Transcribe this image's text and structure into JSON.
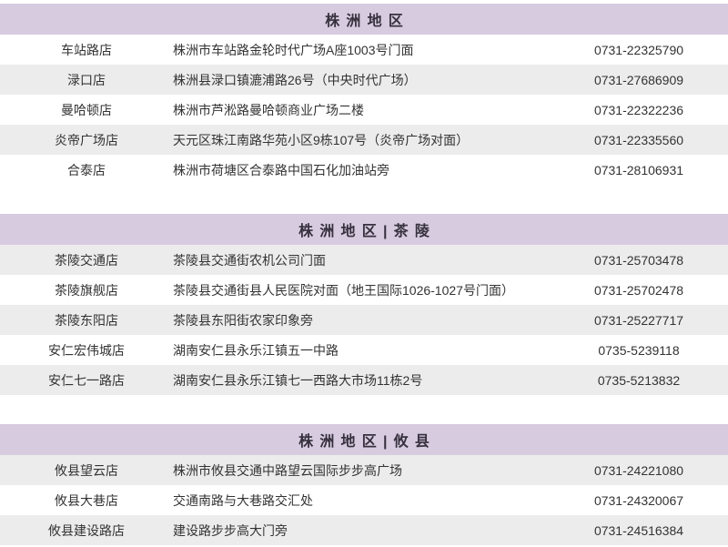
{
  "colors": {
    "header_background": "#d7cbe0",
    "header_text": "#37313e",
    "row_alt_background": "#ececec",
    "row_background": "#ffffff",
    "body_text": "#333333"
  },
  "sections": [
    {
      "title": "株洲地区",
      "rows": [
        {
          "name": "车站路店",
          "address": "株洲市车站路金轮时代广场A座1003号门面",
          "phone": "0731-22325790"
        },
        {
          "name": "渌口店",
          "address": "株洲县渌口镇漉浦路26号（中央时代广场）",
          "phone": "0731-27686909"
        },
        {
          "name": "曼哈顿店",
          "address": "株洲市芦淞路曼哈顿商业广场二楼",
          "phone": "0731-22322236"
        },
        {
          "name": "炎帝广场店",
          "address": "天元区珠江南路华苑小区9栋107号（炎帝广场对面）",
          "phone": "0731-22335560"
        },
        {
          "name": "合泰店",
          "address": "株洲市荷塘区合泰路中国石化加油站旁",
          "phone": "0731-28106931"
        }
      ]
    },
    {
      "title": "株洲地区|茶陵",
      "rows": [
        {
          "name": "茶陵交通店",
          "address": "茶陵县交通街农机公司门面",
          "phone": "0731-25703478"
        },
        {
          "name": "茶陵旗舰店",
          "address": "茶陵县交通街县人民医院对面（地王国际1026-1027号门面）",
          "phone": "0731-25702478"
        },
        {
          "name": "茶陵东阳店",
          "address": "茶陵县东阳街农家印象旁",
          "phone": "0731-25227717"
        },
        {
          "name": "安仁宏伟城店",
          "address": "湖南安仁县永乐江镇五一中路",
          "phone": "0735-5239118"
        },
        {
          "name": "安仁七一路店",
          "address": "湖南安仁县永乐江镇七一西路大市场11栋2号",
          "phone": "0735-5213832"
        }
      ]
    },
    {
      "title": "株洲地区|攸县",
      "rows": [
        {
          "name": "攸县望云店",
          "address": "株洲市攸县交通中路望云国际步步高广场",
          "phone": "0731-24221080"
        },
        {
          "name": "攸县大巷店",
          "address": "交通南路与大巷路交汇处",
          "phone": "0731-24320067"
        },
        {
          "name": "攸县建设路店",
          "address": "建设路步步高大门旁",
          "phone": "0731-24516384"
        }
      ]
    }
  ]
}
